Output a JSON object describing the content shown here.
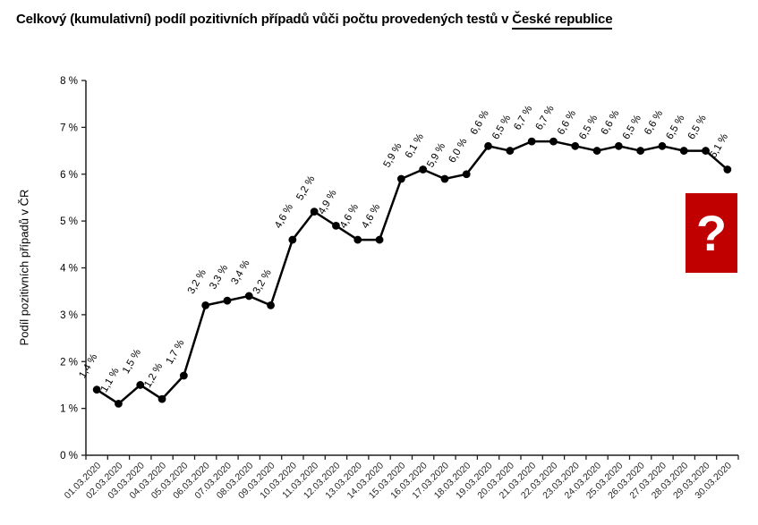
{
  "title": {
    "prefix": "Celkový (kumulativní) podíl pozitivních případů vůči počtu provedených testů v ",
    "underlined": "České republice"
  },
  "chart_data": {
    "type": "line",
    "title": "Celkový (kumulativní) podíl pozitivních případů vůči počtu provedených testů v České republice",
    "x": [
      "01.03.2020",
      "02.03.2020",
      "03.03.2020",
      "04.03.2020",
      "05.03.2020",
      "06.03.2020",
      "07.03.2020",
      "08.03.2020",
      "09.03.2020",
      "10.03.2020",
      "11.03.2020",
      "12.03.2020",
      "13.03.2020",
      "14.03.2020",
      "15.03.2020",
      "16.03.2020",
      "17.03.2020",
      "18.03.2020",
      "19.03.2020",
      "20.03.2020",
      "21.03.2020",
      "22.03.2020",
      "23.03.2020",
      "24.03.2020",
      "25.03.2020",
      "26.03.2020",
      "27.03.2020",
      "28.03.2020",
      "29.03.2020",
      "30.03.2020"
    ],
    "values": [
      1.4,
      1.1,
      1.5,
      1.2,
      1.7,
      3.2,
      3.3,
      3.4,
      3.2,
      4.6,
      5.2,
      4.9,
      4.6,
      4.6,
      5.9,
      6.1,
      5.9,
      6.0,
      6.6,
      6.5,
      6.7,
      6.7,
      6.6,
      6.5,
      6.6,
      6.5,
      6.6,
      6.5,
      6.5,
      6.1
    ],
    "point_labels": [
      "1,4 %",
      "1,1 %",
      "1,5 %",
      "1,2 %",
      "1,7 %",
      "3,2 %",
      "3,3 %",
      "3,4 %",
      "3,2 %",
      "4,6 %",
      "5,2 %",
      "4,9 %",
      "4,6 %",
      "4,6 %",
      "5,9 %",
      "6,1 %",
      "5,9 %",
      "6,0 %",
      "6,6 %",
      "6,5 %",
      "6,7 %",
      "6,7 %",
      "6,6 %",
      "6,5 %",
      "6,6 %",
      "6,5 %",
      "6,6 %",
      "6,5 %",
      "6,5 %",
      "6,1 %"
    ],
    "xlabel": "",
    "ylabel": "Podíl pozitivních případů v ČR",
    "ytick_labels": [
      "0 %",
      "1 %",
      "2 %",
      "3 %",
      "4 %",
      "5 %",
      "6 %",
      "7 %",
      "8 %"
    ],
    "ylim": [
      0,
      8
    ],
    "grid": false,
    "legend": null,
    "line_color": "#000000",
    "marker_color": "#000000",
    "axis_color": "#1f1f1f",
    "tick_label_color": "#262626"
  },
  "annotation": {
    "question_mark": "?",
    "box_color": "#C00000",
    "text_color": "#FFFFFF"
  }
}
